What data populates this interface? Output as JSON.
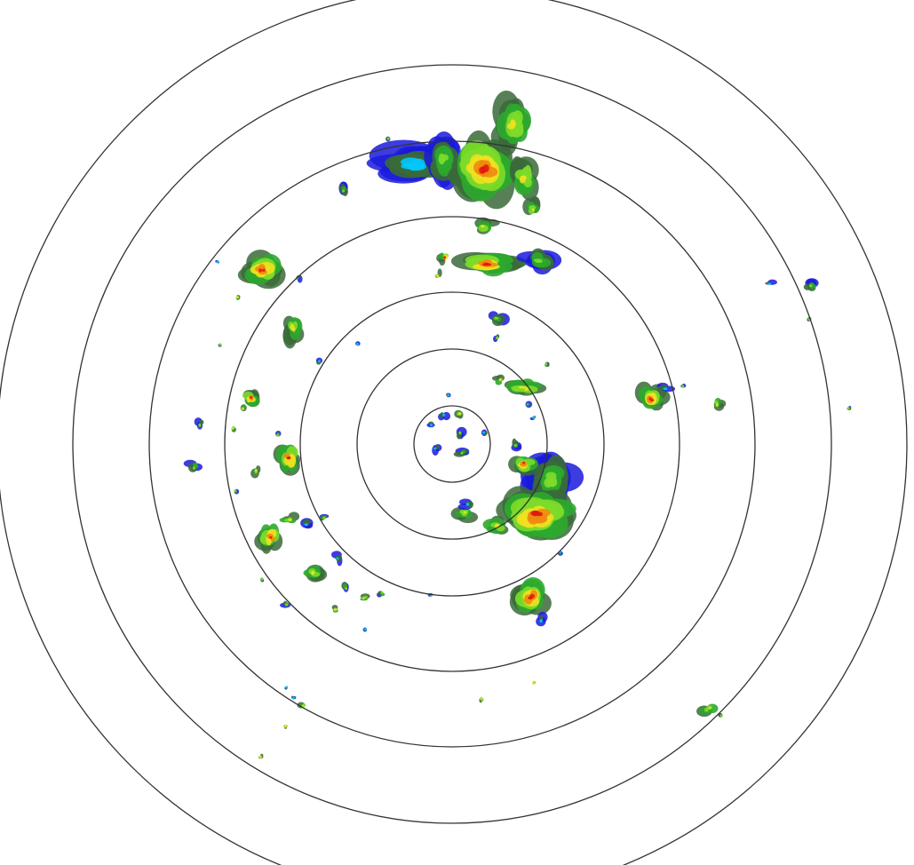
{
  "radar": {
    "ring_count": 7,
    "ring_color": "#333333",
    "reflectivity_colors": {
      "weak_light": "#00c8ff",
      "weak": "#1a1adc",
      "dark_green": "#3a6a3a",
      "green": "#2ea82e",
      "light_green": "#7ddc2a",
      "yellow": "#f0e020",
      "orange": "#f08a10",
      "red": "#e01a10"
    }
  }
}
